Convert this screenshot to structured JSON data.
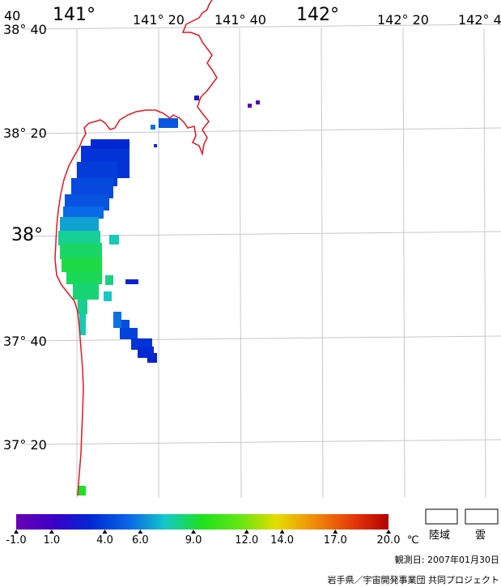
{
  "map": {
    "top_labels": [
      {
        "text": "40",
        "kind": "med"
      },
      {
        "text": "141°",
        "kind": "big"
      },
      {
        "text": "141° 20",
        "kind": "med"
      },
      {
        "text": "141° 40",
        "kind": "med"
      },
      {
        "text": "142°",
        "kind": "big"
      },
      {
        "text": "142° 20",
        "kind": "med"
      },
      {
        "text": "142° 4",
        "kind": "med"
      }
    ],
    "left_labels": [
      {
        "text": "38° 40",
        "kind": "med"
      },
      {
        "text": "38° 20",
        "kind": "med"
      },
      {
        "text": "38°",
        "kind": "big"
      },
      {
        "text": "37° 40",
        "kind": "med"
      },
      {
        "text": "37° 20",
        "kind": "med"
      }
    ],
    "colors": {
      "coastline": "#e8141e",
      "grid": "#c8c8c8"
    }
  },
  "legend": {
    "scale": {
      "min": -1.0,
      "max": 20.0
    },
    "ticks": [
      {
        "label": "-1.0",
        "value": -1.0
      },
      {
        "label": "1.0",
        "value": 1.0
      },
      {
        "label": "4.0",
        "value": 4.0
      },
      {
        "label": "6.0",
        "value": 6.0
      },
      {
        "label": "9.0",
        "value": 9.0
      },
      {
        "label": "12.0",
        "value": 12.0
      },
      {
        "label": "14.0",
        "value": 14.0
      },
      {
        "label": "17.0",
        "value": 17.0
      },
      {
        "label": "20.0",
        "value": 20.0
      }
    ],
    "unit": "℃",
    "gradient": [
      "#6a00b4",
      "#3c00c8",
      "#0028d2",
      "#0a64e6",
      "#14c8c8",
      "#1ee11e",
      "#64e614",
      "#e6dc00",
      "#f08c0a",
      "#e63c0a",
      "#b40000"
    ],
    "boxes": [
      {
        "label": "陸域"
      },
      {
        "label": "雲"
      }
    ]
  },
  "footer": {
    "date": "観測日: 2007年01月30日",
    "credit": "岩手県／宇宙開発事業団 共同プロジェクト"
  }
}
